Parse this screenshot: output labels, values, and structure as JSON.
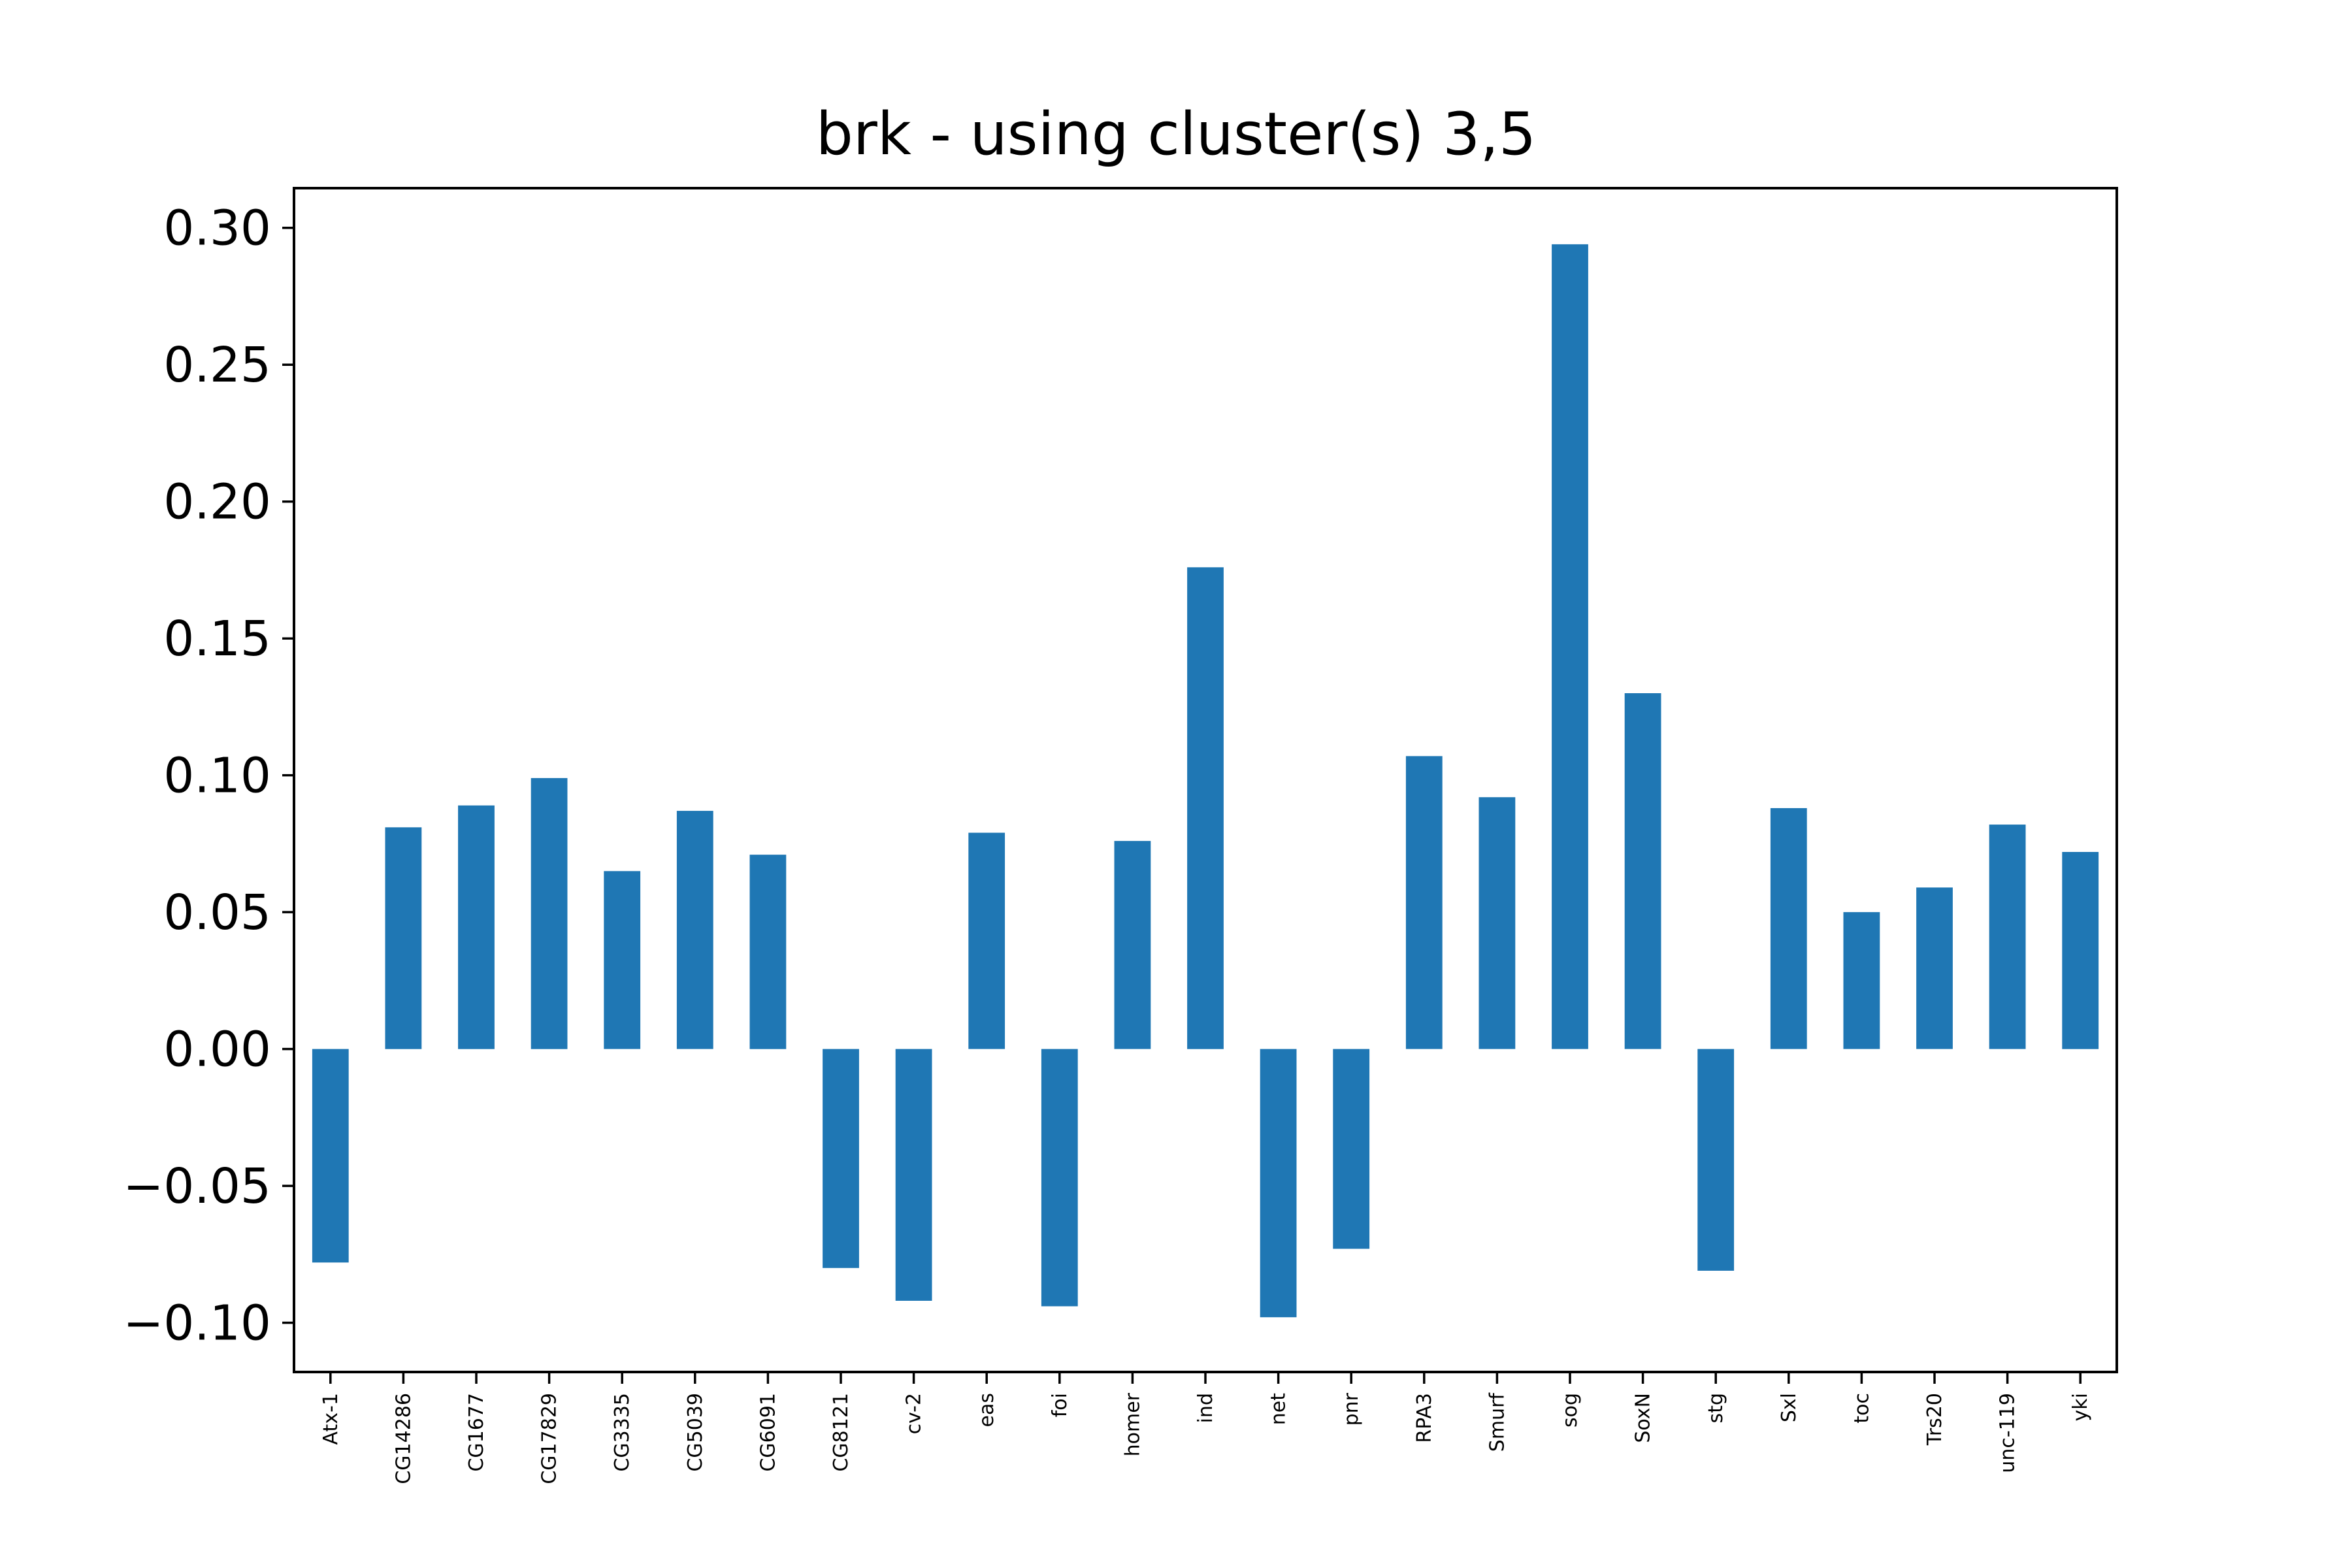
{
  "chart_data": {
    "type": "bar",
    "title": "brk - using cluster(s) 3,5",
    "xlabel": "",
    "ylabel": "",
    "categories": [
      "Atx-1",
      "CG14286",
      "CG1677",
      "CG17829",
      "CG3335",
      "CG5039",
      "CG6091",
      "CG8121",
      "cv-2",
      "eas",
      "foi",
      "homer",
      "ind",
      "net",
      "pnr",
      "RPA3",
      "Smurf",
      "sog",
      "SoxN",
      "stg",
      "Sxl",
      "toc",
      "Trs20",
      "unc-119",
      "yki"
    ],
    "values": [
      -0.078,
      0.081,
      0.089,
      0.099,
      0.065,
      0.087,
      0.071,
      -0.08,
      -0.092,
      0.079,
      -0.094,
      0.076,
      0.176,
      -0.098,
      -0.073,
      0.107,
      0.092,
      0.294,
      0.13,
      -0.081,
      0.088,
      0.05,
      0.059,
      0.082,
      0.072
    ],
    "ylim": [
      -0.118,
      0.3145
    ],
    "yticks": [
      -0.1,
      -0.05,
      0.0,
      0.05,
      0.1,
      0.15,
      0.2,
      0.25,
      0.3
    ],
    "ytick_labels": [
      "−0.10",
      "−0.05",
      "0.00",
      "0.05",
      "0.10",
      "0.15",
      "0.20",
      "0.25",
      "0.30"
    ],
    "bar_color": "#1f77b4",
    "grid": false,
    "legend": "none"
  }
}
